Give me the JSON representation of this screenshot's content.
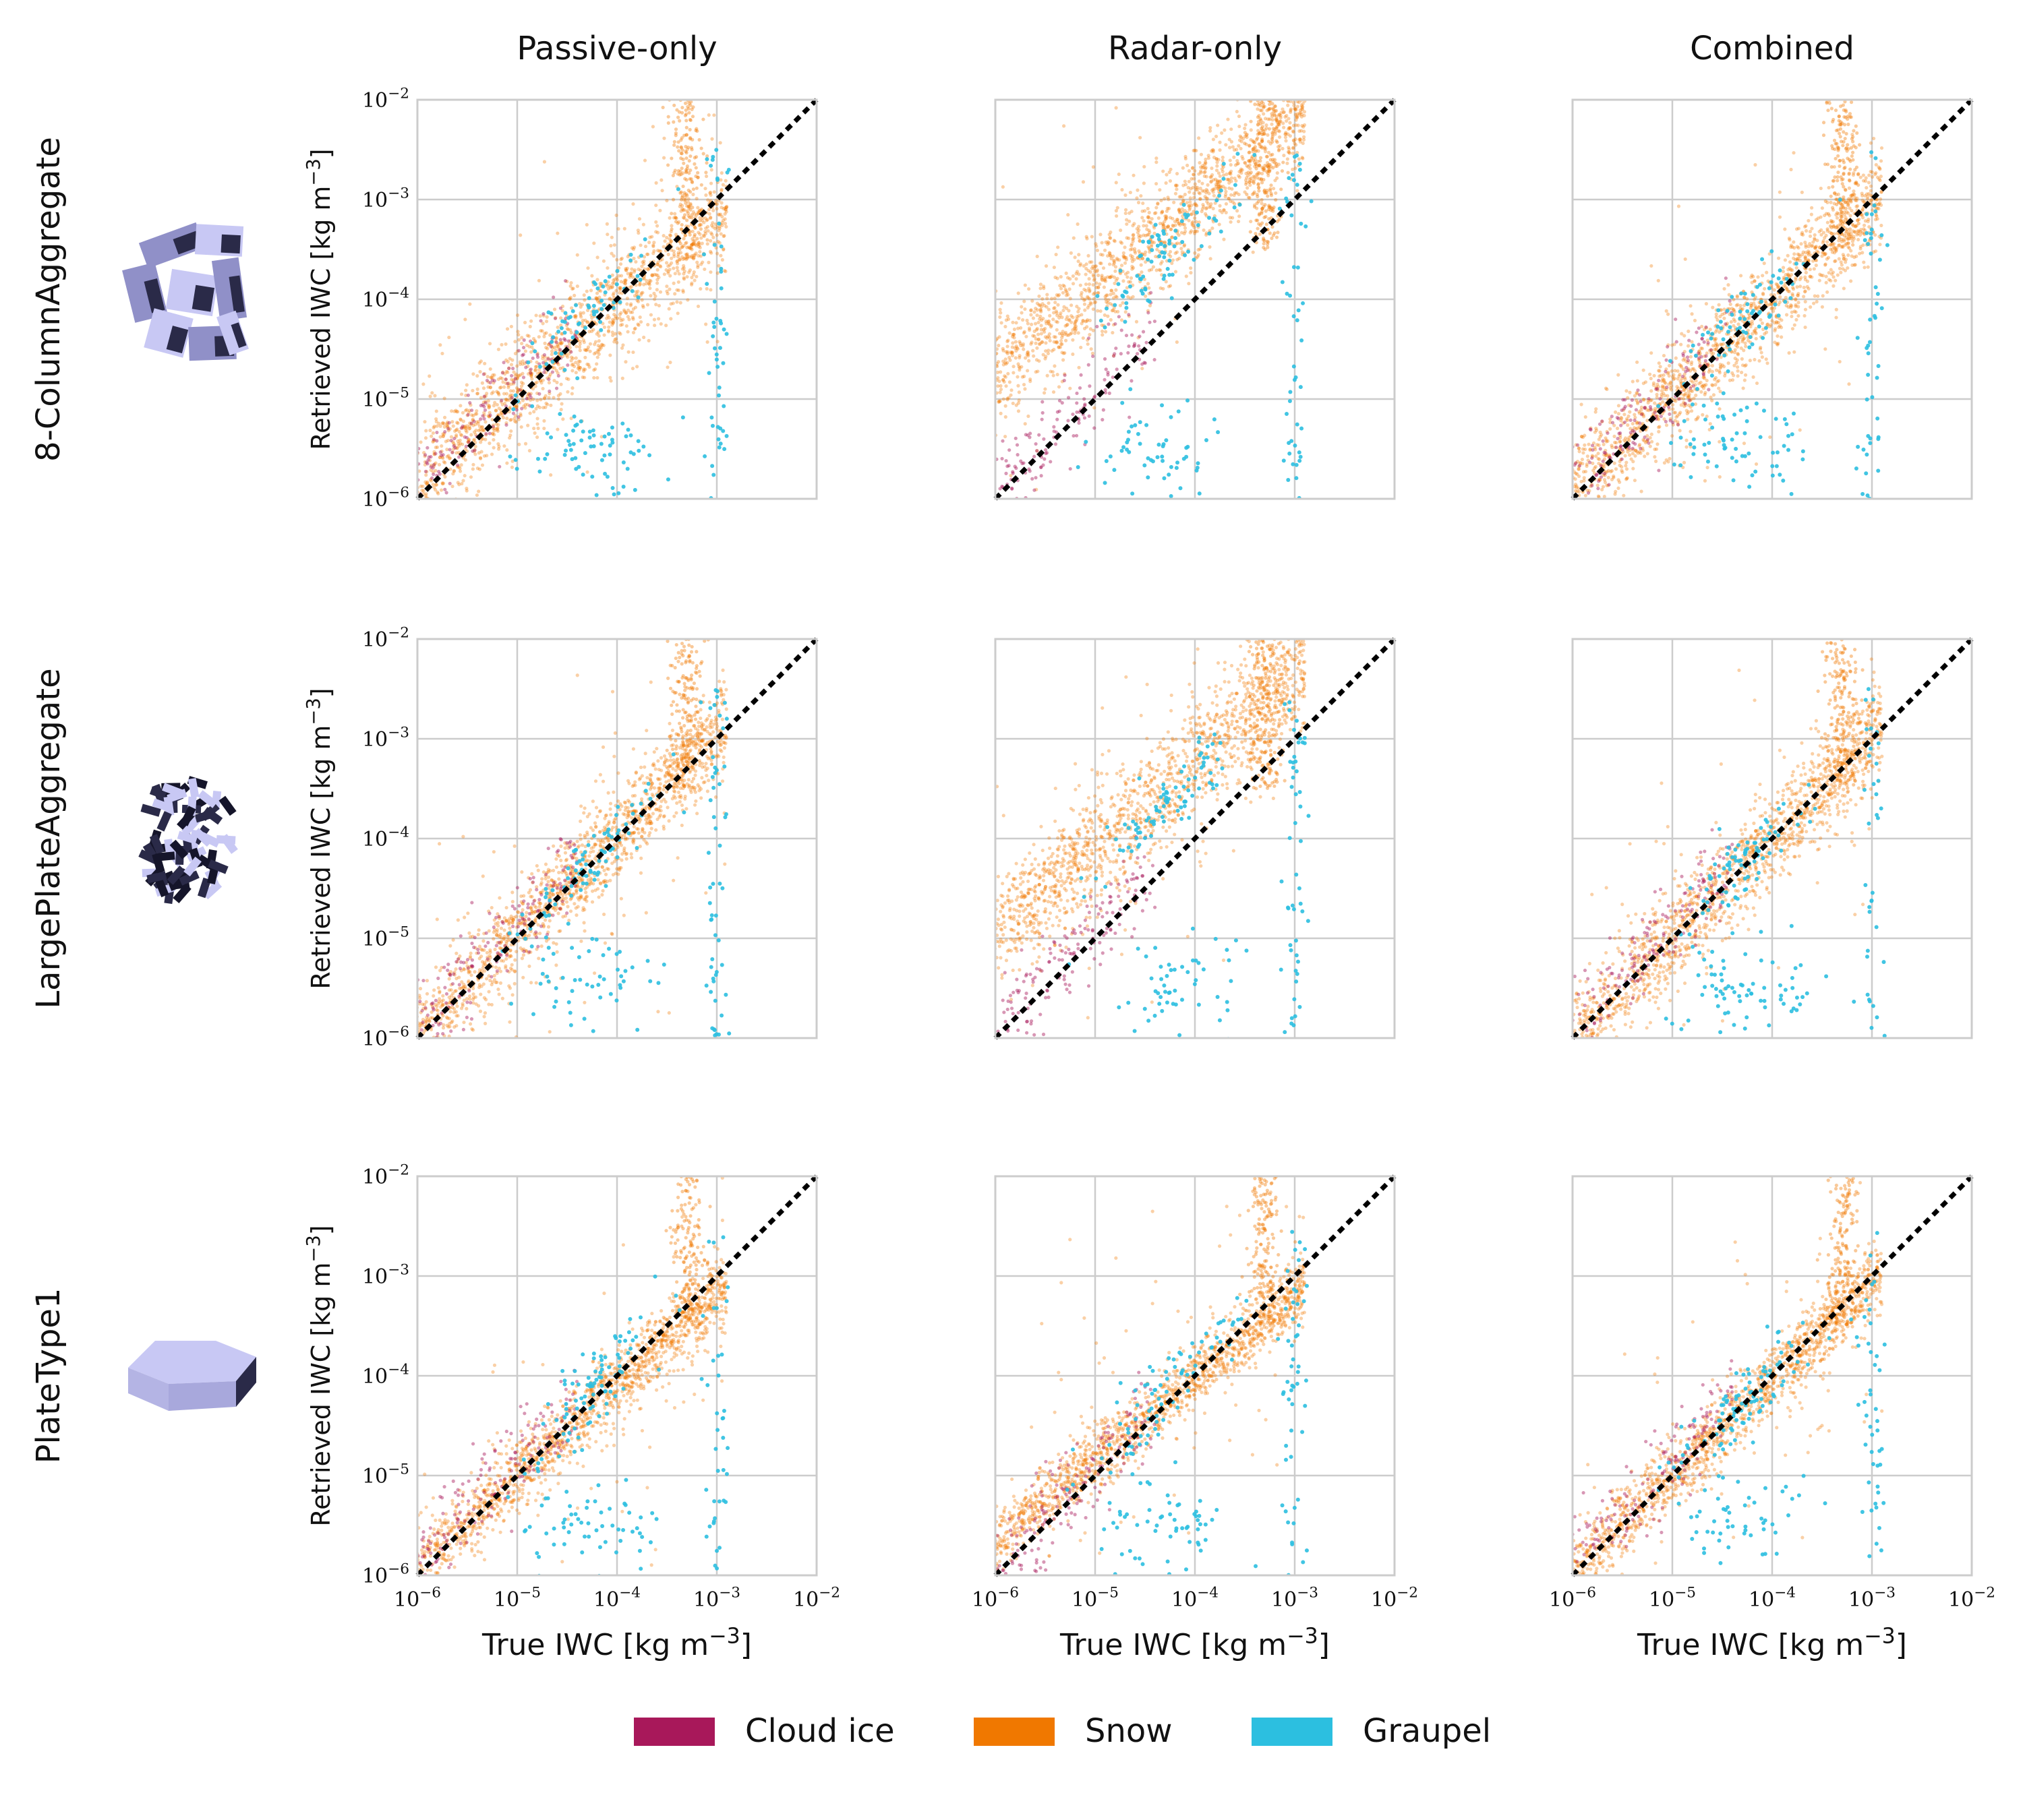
{
  "colors": {
    "cloud_ice": "#a8185a",
    "snow": "#f07800",
    "graupel": "#2cbfe0",
    "grid": "#cccccc",
    "frame": "#cccccc",
    "diagonal": "#000000"
  },
  "columns": [
    "Passive-only",
    "Radar-only",
    "Combined"
  ],
  "rows": [
    {
      "name": "8-ColumnAggregate",
      "icon": "column-aggregate-particle-icon"
    },
    {
      "name": "LargePlateAggregate",
      "icon": "plate-aggregate-particle-icon"
    },
    {
      "name": "PlateType1",
      "icon": "hexagonal-plate-particle-icon"
    }
  ],
  "legend": {
    "placement": "bottom-center",
    "items": [
      {
        "label": "Cloud ice",
        "color": "#a8185a"
      },
      {
        "label": "Snow",
        "color": "#f07800"
      },
      {
        "label": "Graupel",
        "color": "#2cbfe0"
      }
    ]
  },
  "chart_data": {
    "type": "scatter",
    "layout": "3x3 panel grid (rows: particle habits, columns: retrieval configurations)",
    "xlabel_base": "True IWC [kg m",
    "ylabel_base": "Retrieved IWC [kg m",
    "unit_exponent": "−3",
    "xscale": "log",
    "yscale": "log",
    "xlim": [
      1e-06,
      0.01
    ],
    "ylim": [
      1e-06,
      0.01
    ],
    "tick_exponents": [
      "−6",
      "−5",
      "−4",
      "−3",
      "−2"
    ],
    "grid": true,
    "reference_line": "1:1 dotted",
    "series": [
      "Cloud ice",
      "Snow",
      "Graupel"
    ]
  }
}
